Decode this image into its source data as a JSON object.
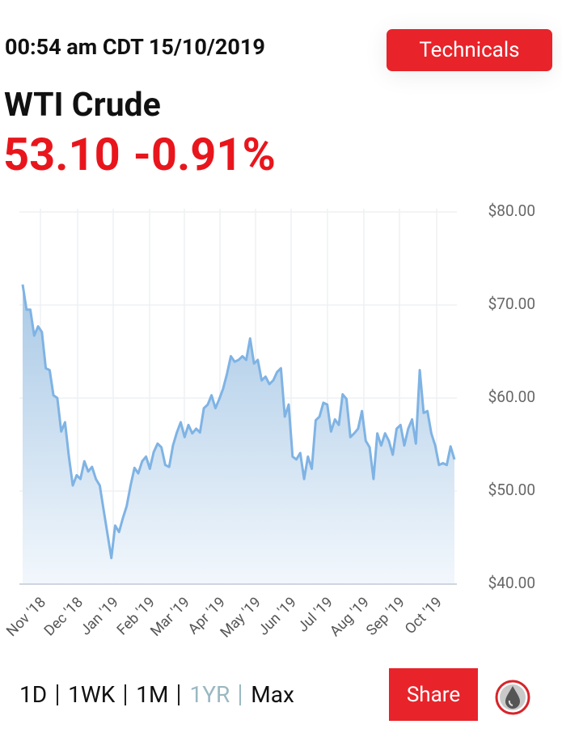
{
  "header": {
    "timestamp": "00:54 am CDT 15/10/2019",
    "technicals_button": "Technicals",
    "instrument": "WTI Crude",
    "price": "53.10",
    "change": "-0.91%"
  },
  "chart_data": {
    "type": "area",
    "x_labels": [
      "Nov '18",
      "Dec '18",
      "Jan '19",
      "Feb '19",
      "Mar '19",
      "Apr '19",
      "May '19",
      "Jun '19",
      "Jul '19",
      "Aug '19",
      "Sep '19",
      "Oct '19"
    ],
    "values": [
      72.2,
      69.5,
      69.5,
      66.7,
      67.7,
      67.1,
      63.2,
      63.0,
      60.3,
      60.0,
      56.4,
      57.4,
      53.7,
      50.6,
      51.7,
      51.3,
      53.2,
      52.1,
      52.6,
      51.3,
      50.6,
      48.0,
      45.4,
      42.8,
      46.3,
      45.6,
      47.1,
      48.4,
      50.6,
      52.5,
      51.9,
      53.2,
      53.7,
      52.4,
      54.2,
      55.1,
      54.7,
      52.8,
      52.6,
      54.9,
      56.3,
      57.4,
      55.8,
      57.1,
      56.2,
      56.7,
      56.3,
      58.9,
      59.3,
      60.3,
      58.9,
      59.9,
      61.0,
      62.6,
      64.5,
      63.9,
      64.1,
      64.5,
      64.1,
      66.4,
      63.7,
      64.1,
      61.9,
      62.3,
      61.5,
      61.9,
      62.8,
      63.2,
      58.0,
      59.3,
      53.7,
      53.4,
      54.1,
      51.3,
      53.7,
      52.4,
      57.6,
      58.0,
      59.5,
      59.3,
      56.4,
      57.7,
      57.1,
      60.4,
      59.9,
      55.8,
      56.2,
      56.7,
      58.6,
      55.4,
      54.7,
      51.3,
      56.2,
      54.9,
      56.2,
      55.4,
      53.9,
      56.7,
      57.1,
      54.9,
      56.7,
      57.7,
      55.1,
      63.0,
      58.4,
      58.6,
      56.2,
      54.9,
      52.8,
      53.0,
      52.8,
      54.8,
      53.4
    ],
    "color": "#7fb3e4",
    "ylim": [
      40,
      80
    ],
    "yticks": [
      {
        "value": 40,
        "label": "$40.00"
      },
      {
        "value": 50,
        "label": "$50.00"
      },
      {
        "value": 60,
        "label": "$60.00"
      },
      {
        "value": 70,
        "label": "$70.00"
      },
      {
        "value": 80,
        "label": "$80.00"
      }
    ],
    "grid": true
  },
  "range_buttons": [
    "1D",
    "1WK",
    "1M",
    "1YR",
    "Max"
  ],
  "active_range": "1YR",
  "share_button": "Share"
}
